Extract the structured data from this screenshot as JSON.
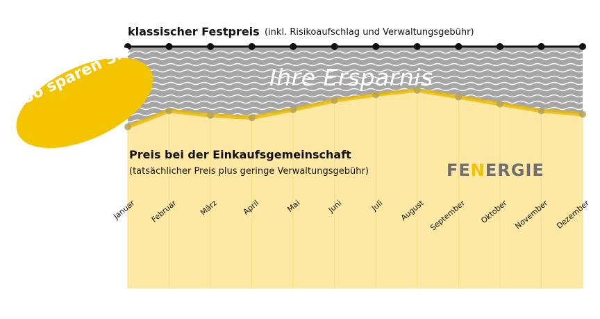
{
  "colors": {
    "fixed_line": "#111111",
    "group_line": "#f2c200",
    "group_fill": "#fde9a3",
    "savings_band": "#a8a8a8",
    "badge": "#f5c400",
    "logo_gray": "#6f6f6f",
    "logo_accent": "#f2c200"
  },
  "header": {
    "fixed_title": "klassischer Festpreis",
    "fixed_sub": "(inkl. Risikoaufschlag und Verwaltungsgebühr)"
  },
  "savings_label": "Ihre Ersparnis",
  "badge": "So sparen Sie",
  "group": {
    "title": "Preis bei der Einkaufsgemeinschaft",
    "sub": "(tatsächlicher Preis plus geringe Verwaltungsgebühr)"
  },
  "logo": {
    "prefix": "FE",
    "accent": "N",
    "suffix": "ERGIE"
  },
  "chart_data": {
    "type": "line",
    "categories": [
      "Januar",
      "Februar",
      "März",
      "April",
      "Mai",
      "Juni",
      "Juli",
      "August",
      "September",
      "Oktober",
      "November",
      "Dezember"
    ],
    "series": [
      {
        "name": "klassischer Festpreis",
        "values": [
          100,
          100,
          100,
          100,
          100,
          100,
          100,
          100,
          100,
          100,
          100,
          100
        ]
      },
      {
        "name": "Preis bei der Einkaufsgemeinschaft",
        "values": [
          30,
          44,
          40,
          38,
          45,
          53,
          58,
          62,
          56,
          50,
          44,
          41
        ]
      }
    ],
    "ylim": [
      0,
      100
    ],
    "grid": false,
    "xlabel": "",
    "ylabel": ""
  }
}
